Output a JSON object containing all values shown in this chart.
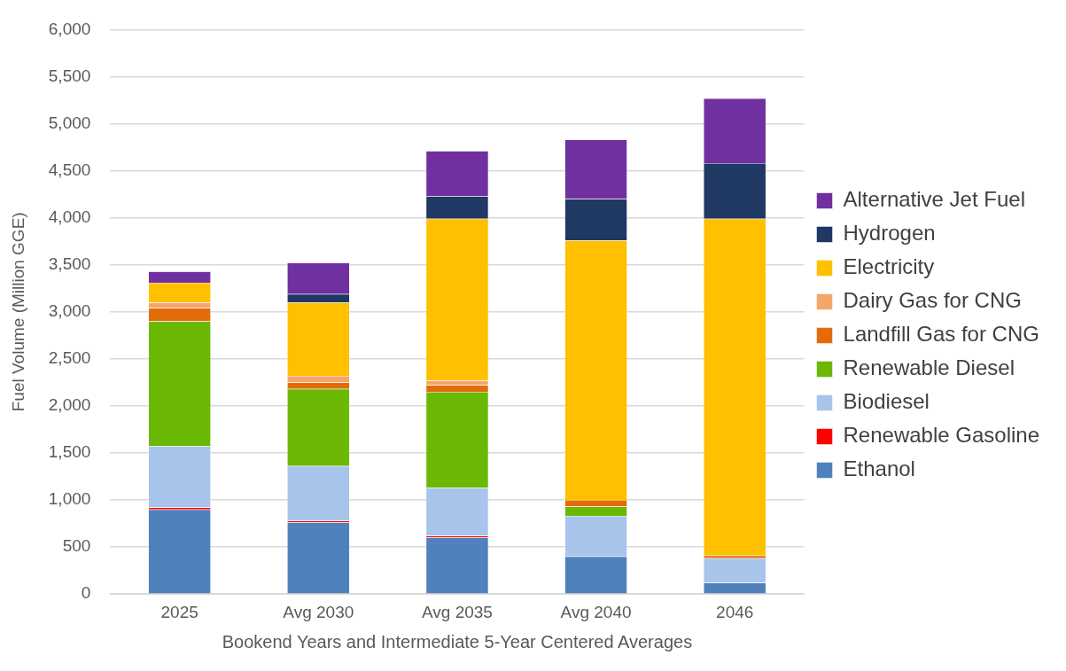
{
  "chart_data": {
    "type": "bar",
    "stacked": true,
    "xlabel": "Bookend Years and Intermediate 5-Year Centered Averages",
    "ylabel": "Fuel Volume (Million GGE)",
    "categories": [
      "2025",
      "Avg 2030",
      "Avg 2035",
      "Avg 2040",
      "2046"
    ],
    "series": [
      {
        "name": "Ethanol",
        "color": "#4f81bd",
        "values": [
          900,
          760,
          600,
          400,
          120
        ]
      },
      {
        "name": "Renewable Gasoline",
        "color": "#ff0000",
        "values": [
          20,
          20,
          20,
          null,
          0
        ]
      },
      {
        "name": "Biodiesel",
        "color": "#a9c4eb",
        "values": [
          650,
          580,
          510,
          430,
          260
        ]
      },
      {
        "name": "Renewable Diesel",
        "color": "#6ab804",
        "values": [
          1330,
          820,
          1020,
          100,
          0
        ]
      },
      {
        "name": "Landfill Gas for CNG",
        "color": "#e36c0a",
        "values": [
          140,
          70,
          70,
          70,
          30
        ]
      },
      {
        "name": "Dairy Gas for CNG",
        "color": "#f4a66a",
        "values": [
          60,
          70,
          50,
          null,
          0
        ]
      },
      {
        "name": "Electricity",
        "color": "#ffc000",
        "values": [
          210,
          780,
          1720,
          2760,
          3580
        ]
      },
      {
        "name": "Hydrogen",
        "color": "#1f3864",
        "values": [
          null,
          90,
          240,
          440,
          590
        ]
      },
      {
        "name": "Alternative Jet Fuel",
        "color": "#7030a0",
        "values": [
          120,
          330,
          480,
          630,
          690
        ]
      }
    ],
    "ylim": [
      0,
      6000
    ],
    "yticks": [
      {
        "value": 0,
        "label": "0"
      },
      {
        "value": 500,
        "label": "500"
      },
      {
        "value": 1000,
        "label": "1,000"
      },
      {
        "value": 1500,
        "label": "1,500"
      },
      {
        "value": 2000,
        "label": "2,000"
      },
      {
        "value": 2500,
        "label": "2,500"
      },
      {
        "value": 3000,
        "label": "3,000"
      },
      {
        "value": 3500,
        "label": "3,500"
      },
      {
        "value": 4000,
        "label": "4,000"
      },
      {
        "value": 4500,
        "label": "4,500"
      },
      {
        "value": 5000,
        "label": "5,000"
      },
      {
        "value": 5500,
        "label": "5,500"
      },
      {
        "value": 6000,
        "label": "6,000"
      }
    ],
    "grid": "y",
    "legend": "right"
  }
}
